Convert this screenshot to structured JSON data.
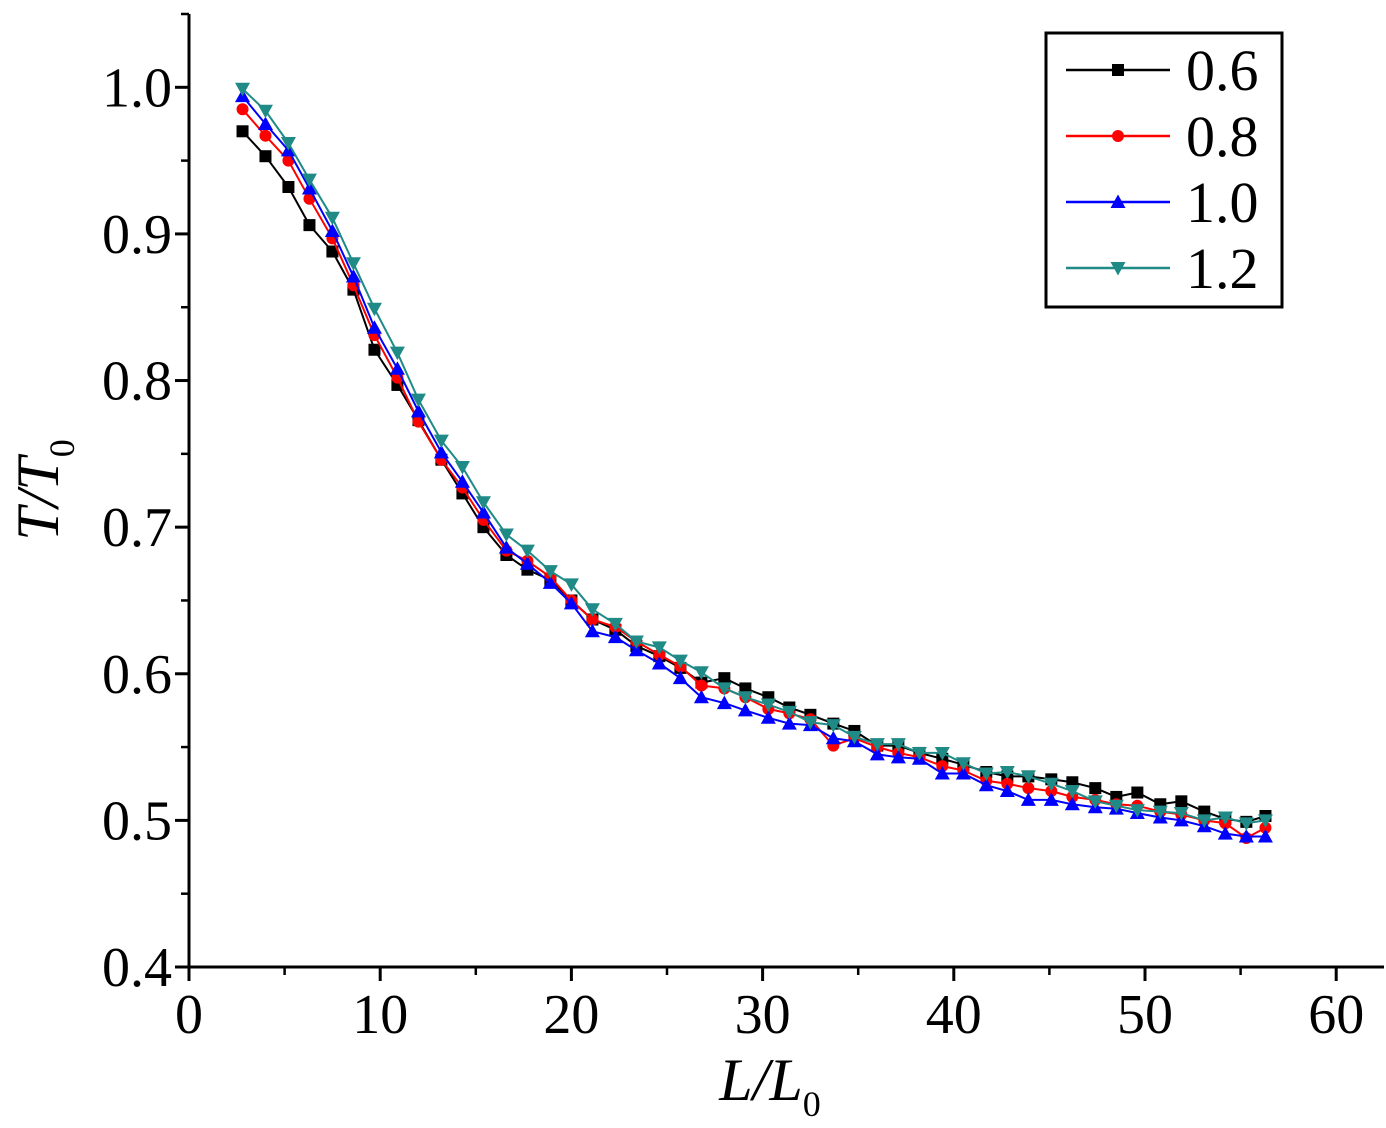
{
  "chart_data": {
    "type": "line",
    "title": "",
    "xlabel": {
      "main": "L/L",
      "sub": "0"
    },
    "ylabel": {
      "main": "T/T",
      "sub": "0"
    },
    "xlim": [
      0,
      62.5
    ],
    "ylim": [
      0.4,
      1.05
    ],
    "xticks": [
      0,
      10,
      20,
      30,
      40,
      50,
      60
    ],
    "xtick_labels": [
      "0",
      "10",
      "20",
      "30",
      "40",
      "50",
      "60"
    ],
    "yticks": [
      0.4,
      0.5,
      0.6,
      0.7,
      0.8,
      0.9,
      1.0
    ],
    "ytick_labels": [
      "0.4",
      "0.5",
      "0.6",
      "0.7",
      "0.8",
      "0.9",
      "1.0"
    ],
    "grid": false,
    "legend_position": "top-right",
    "series": [
      {
        "name": "0.6",
        "color": "#000000",
        "marker": "square",
        "x": [
          2.8,
          4.0,
          5.2,
          6.3,
          7.5,
          8.6,
          9.7,
          10.9,
          12.0,
          13.2,
          14.3,
          15.4,
          16.6,
          17.7,
          18.9,
          20.0,
          21.1,
          22.3,
          23.4,
          24.6,
          25.7,
          26.8,
          28.0,
          29.1,
          30.3,
          31.4,
          32.5,
          33.7,
          34.8,
          36.0,
          37.1,
          38.2,
          39.4,
          40.5,
          41.7,
          42.8,
          43.9,
          45.1,
          46.2,
          47.4,
          48.5,
          49.6,
          50.8,
          51.9,
          53.1,
          54.2,
          55.3,
          56.3
        ],
        "y": [
          0.97,
          0.953,
          0.932,
          0.906,
          0.888,
          0.862,
          0.821,
          0.797,
          0.773,
          0.746,
          0.723,
          0.7,
          0.681,
          0.671,
          0.664,
          0.65,
          0.637,
          0.63,
          0.619,
          0.612,
          0.604,
          0.594,
          0.597,
          0.59,
          0.584,
          0.577,
          0.572,
          0.566,
          0.561,
          0.551,
          0.551,
          0.546,
          0.542,
          0.538,
          0.533,
          0.53,
          0.53,
          0.528,
          0.526,
          0.522,
          0.516,
          0.519,
          0.511,
          0.513,
          0.506,
          0.501,
          0.499,
          0.503
        ]
      },
      {
        "name": "0.8",
        "color": "#ff0000",
        "marker": "circle",
        "x": [
          2.8,
          4.0,
          5.2,
          6.3,
          7.5,
          8.6,
          9.7,
          10.9,
          12.0,
          13.2,
          14.3,
          15.4,
          16.6,
          17.7,
          18.9,
          20.0,
          21.1,
          22.3,
          23.4,
          24.6,
          25.7,
          26.8,
          28.0,
          29.1,
          30.3,
          31.4,
          32.5,
          33.7,
          34.8,
          36.0,
          37.1,
          38.2,
          39.4,
          40.5,
          41.7,
          42.8,
          43.9,
          45.1,
          46.2,
          47.4,
          48.5,
          49.6,
          50.8,
          51.9,
          53.1,
          54.2,
          55.3,
          56.3
        ],
        "y": [
          0.985,
          0.967,
          0.95,
          0.924,
          0.897,
          0.865,
          0.831,
          0.802,
          0.772,
          0.746,
          0.727,
          0.705,
          0.684,
          0.677,
          0.666,
          0.65,
          0.637,
          0.632,
          0.622,
          0.613,
          0.605,
          0.592,
          0.59,
          0.584,
          0.576,
          0.573,
          0.569,
          0.551,
          0.556,
          0.55,
          0.546,
          0.543,
          0.537,
          0.534,
          0.527,
          0.525,
          0.522,
          0.52,
          0.516,
          0.514,
          0.511,
          0.51,
          0.506,
          0.504,
          0.5,
          0.498,
          0.488,
          0.495
        ]
      },
      {
        "name": "1.0",
        "color": "#0000ff",
        "marker": "triangle-up",
        "x": [
          2.8,
          4.0,
          5.2,
          6.3,
          7.5,
          8.6,
          9.7,
          10.9,
          12.0,
          13.2,
          14.3,
          15.4,
          16.6,
          17.7,
          18.9,
          20.0,
          21.1,
          22.3,
          23.4,
          24.6,
          25.7,
          26.8,
          28.0,
          29.1,
          30.3,
          31.4,
          32.5,
          33.7,
          34.8,
          36.0,
          37.1,
          38.2,
          39.4,
          40.5,
          41.7,
          42.8,
          43.9,
          45.1,
          46.2,
          47.4,
          48.5,
          49.6,
          50.8,
          51.9,
          53.1,
          54.2,
          55.3,
          56.3
        ],
        "y": [
          0.994,
          0.975,
          0.957,
          0.931,
          0.902,
          0.871,
          0.836,
          0.808,
          0.779,
          0.751,
          0.731,
          0.71,
          0.686,
          0.675,
          0.662,
          0.648,
          0.629,
          0.625,
          0.616,
          0.607,
          0.597,
          0.584,
          0.58,
          0.575,
          0.57,
          0.566,
          0.565,
          0.556,
          0.554,
          0.545,
          0.543,
          0.542,
          0.532,
          0.532,
          0.524,
          0.52,
          0.514,
          0.514,
          0.511,
          0.509,
          0.508,
          0.505,
          0.502,
          0.5,
          0.496,
          0.491,
          0.489,
          0.489
        ]
      },
      {
        "name": "1.2",
        "color": "#1f8a86",
        "marker": "triangle-down",
        "x": [
          2.8,
          4.0,
          5.2,
          6.3,
          7.5,
          8.6,
          9.7,
          10.9,
          12.0,
          13.2,
          14.3,
          15.4,
          16.6,
          17.7,
          18.9,
          20.0,
          21.1,
          22.3,
          23.4,
          24.6,
          25.7,
          26.8,
          28.0,
          29.1,
          30.3,
          31.4,
          32.5,
          33.7,
          34.8,
          36.0,
          37.1,
          38.2,
          39.4,
          40.5,
          41.7,
          42.8,
          43.9,
          45.1,
          46.2,
          47.4,
          48.5,
          49.6,
          50.8,
          51.9,
          53.1,
          54.2,
          55.3,
          56.3
        ],
        "y": [
          0.999,
          0.984,
          0.962,
          0.937,
          0.911,
          0.88,
          0.849,
          0.819,
          0.787,
          0.759,
          0.741,
          0.717,
          0.695,
          0.684,
          0.67,
          0.661,
          0.644,
          0.634,
          0.622,
          0.618,
          0.609,
          0.601,
          0.59,
          0.584,
          0.579,
          0.574,
          0.567,
          0.565,
          0.557,
          0.552,
          0.552,
          0.546,
          0.546,
          0.539,
          0.532,
          0.533,
          0.53,
          0.525,
          0.52,
          0.513,
          0.51,
          0.507,
          0.506,
          0.505,
          0.5,
          0.502,
          0.498,
          0.5
        ]
      }
    ]
  }
}
